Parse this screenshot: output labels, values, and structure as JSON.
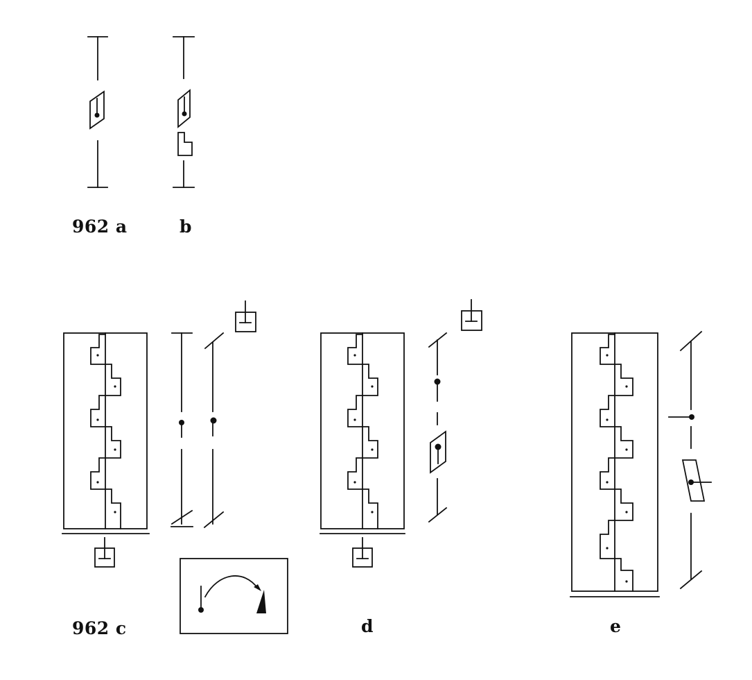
{
  "labels": {
    "a": "962 a",
    "b": "b",
    "c": "962 c",
    "d": "d",
    "e": "e"
  }
}
